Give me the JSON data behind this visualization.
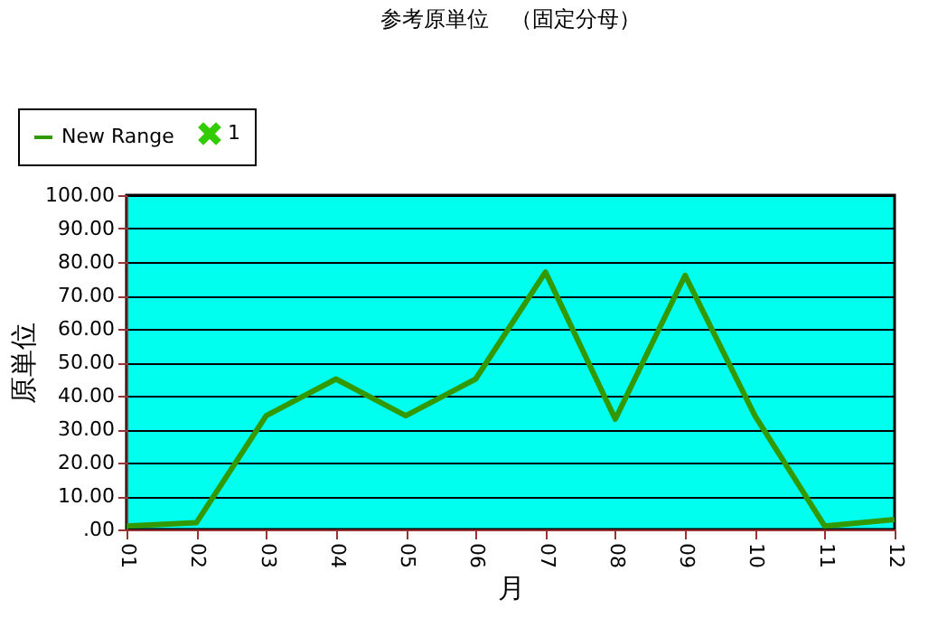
{
  "chart_data": {
    "type": "line",
    "title": "参考原単位　（固定分母）",
    "xlabel": "月",
    "ylabel": "原単位",
    "categories": [
      "01",
      "02",
      "03",
      "04",
      "05",
      "06",
      "07",
      "08",
      "09",
      "10",
      "11",
      "12"
    ],
    "series": [
      {
        "name": "New Range",
        "color": "#339900",
        "values": [
          1,
          2,
          34,
          45,
          34,
          45,
          77,
          33,
          76,
          34,
          1,
          3
        ]
      },
      {
        "name": "1",
        "type": "scatter",
        "marker": "cross",
        "color": "#33cc00",
        "values": [
          null,
          null,
          null,
          null,
          null,
          null,
          null,
          null,
          null,
          null,
          null,
          null
        ]
      }
    ],
    "ylim": [
      0,
      100
    ],
    "yticks": [
      {
        "value": 0,
        "label": ".00"
      },
      {
        "value": 10,
        "label": "10.00"
      },
      {
        "value": 20,
        "label": "20.00"
      },
      {
        "value": 30,
        "label": "30.00"
      },
      {
        "value": 40,
        "label": "40.00"
      },
      {
        "value": 50,
        "label": "50.00"
      },
      {
        "value": 60,
        "label": "60.00"
      },
      {
        "value": 70,
        "label": "70.00"
      },
      {
        "value": 80,
        "label": "80.00"
      },
      {
        "value": 90,
        "label": "90.00"
      },
      {
        "value": 100,
        "label": "100.00"
      }
    ],
    "grid": "y",
    "legend": "top left"
  }
}
